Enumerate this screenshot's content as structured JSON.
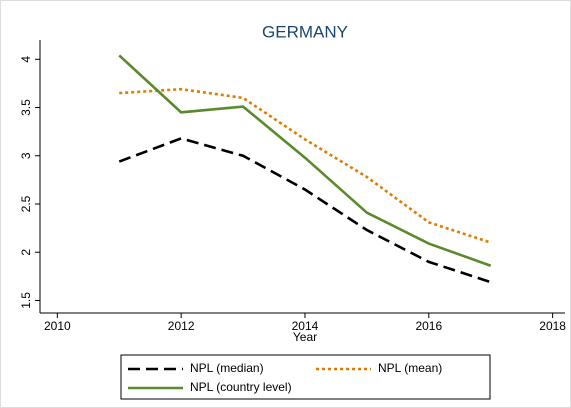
{
  "chart_data": {
    "type": "line",
    "title": "GERMANY",
    "x_label": "Year",
    "x": [
      2011,
      2012,
      2013,
      2014,
      2015,
      2016,
      2017
    ],
    "series": [
      {
        "name": "NPL (median)",
        "color": "#000000",
        "dash": "dash",
        "values": [
          2.94,
          3.18,
          3.0,
          2.65,
          2.23,
          1.9,
          1.69
        ]
      },
      {
        "name": "NPL (mean)",
        "color": "#e07b00",
        "dash": "dot",
        "values": [
          3.65,
          3.69,
          3.6,
          3.17,
          2.78,
          2.31,
          2.1
        ]
      },
      {
        "name": "NPL (country level)",
        "color": "#5b8a2e",
        "dash": "solid",
        "values": [
          4.04,
          3.45,
          3.51,
          2.98,
          2.41,
          2.09,
          1.86
        ]
      }
    ],
    "xlim": [
      2009.72,
      2018.2
    ],
    "xticks": [
      2010,
      2012,
      2014,
      2016,
      2018
    ],
    "ylim": [
      1.37,
      4.2
    ],
    "yticks": [
      1.5,
      2,
      2.5,
      3,
      3.5,
      4
    ],
    "grid": false
  }
}
